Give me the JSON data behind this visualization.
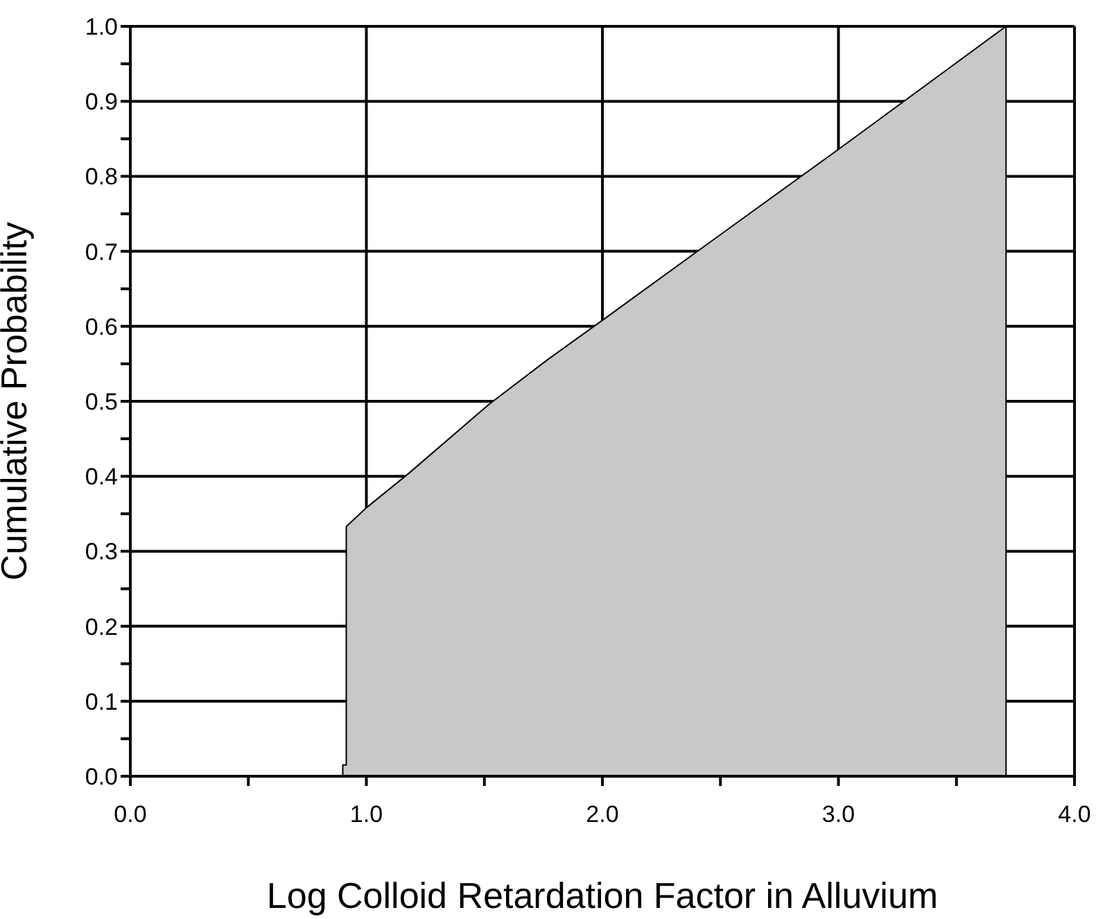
{
  "chart_data": {
    "type": "area",
    "xlabel": "Log Colloid Retardation Factor in Alluvium",
    "ylabel": "Cumulative Probability",
    "x": [
      0.9,
      0.9,
      0.915,
      0.915,
      1.0,
      1.18,
      1.52,
      1.77,
      2.0,
      2.42,
      3.0,
      3.26,
      3.71,
      3.71
    ],
    "series": [
      {
        "color": "#c8c8c8",
        "values": [
          0,
          0.015,
          0.015,
          0.333,
          0.358,
          0.404,
          0.496,
          0.556,
          0.608,
          0.704,
          0.836,
          0.896,
          1.0,
          0
        ]
      }
    ],
    "xlim": [
      0,
      4
    ],
    "ylim": [
      0,
      1
    ],
    "xticks": [
      {
        "value": 0,
        "label": "0.0"
      },
      {
        "value": 0.5,
        "label": null
      },
      {
        "value": 1,
        "label": "1.0"
      },
      {
        "value": 1.5,
        "label": null
      },
      {
        "value": 2,
        "label": "2.0"
      },
      {
        "value": 2.5,
        "label": null
      },
      {
        "value": 3,
        "label": "3.0"
      },
      {
        "value": 3.5,
        "label": null
      },
      {
        "value": 4,
        "label": "4.0"
      }
    ],
    "yticks": [
      {
        "value": 0,
        "label": "0.0"
      },
      {
        "value": 0.05,
        "label": null
      },
      {
        "value": 0.1,
        "label": "0.1"
      },
      {
        "value": 0.15,
        "label": null
      },
      {
        "value": 0.2,
        "label": "0.2"
      },
      {
        "value": 0.25,
        "label": null
      },
      {
        "value": 0.3,
        "label": "0.3"
      },
      {
        "value": 0.35,
        "label": null
      },
      {
        "value": 0.4,
        "label": "0.4"
      },
      {
        "value": 0.45,
        "label": null
      },
      {
        "value": 0.5,
        "label": "0.5"
      },
      {
        "value": 0.55,
        "label": null
      },
      {
        "value": 0.6,
        "label": "0.6"
      },
      {
        "value": 0.65,
        "label": null
      },
      {
        "value": 0.7,
        "label": "0.7"
      },
      {
        "value": 0.75,
        "label": null
      },
      {
        "value": 0.8,
        "label": "0.8"
      },
      {
        "value": 0.85,
        "label": null
      },
      {
        "value": 0.9,
        "label": "0.9"
      },
      {
        "value": 0.95,
        "label": null
      },
      {
        "value": 1,
        "label": "1.0"
      }
    ],
    "grid": true,
    "marker": "none"
  }
}
